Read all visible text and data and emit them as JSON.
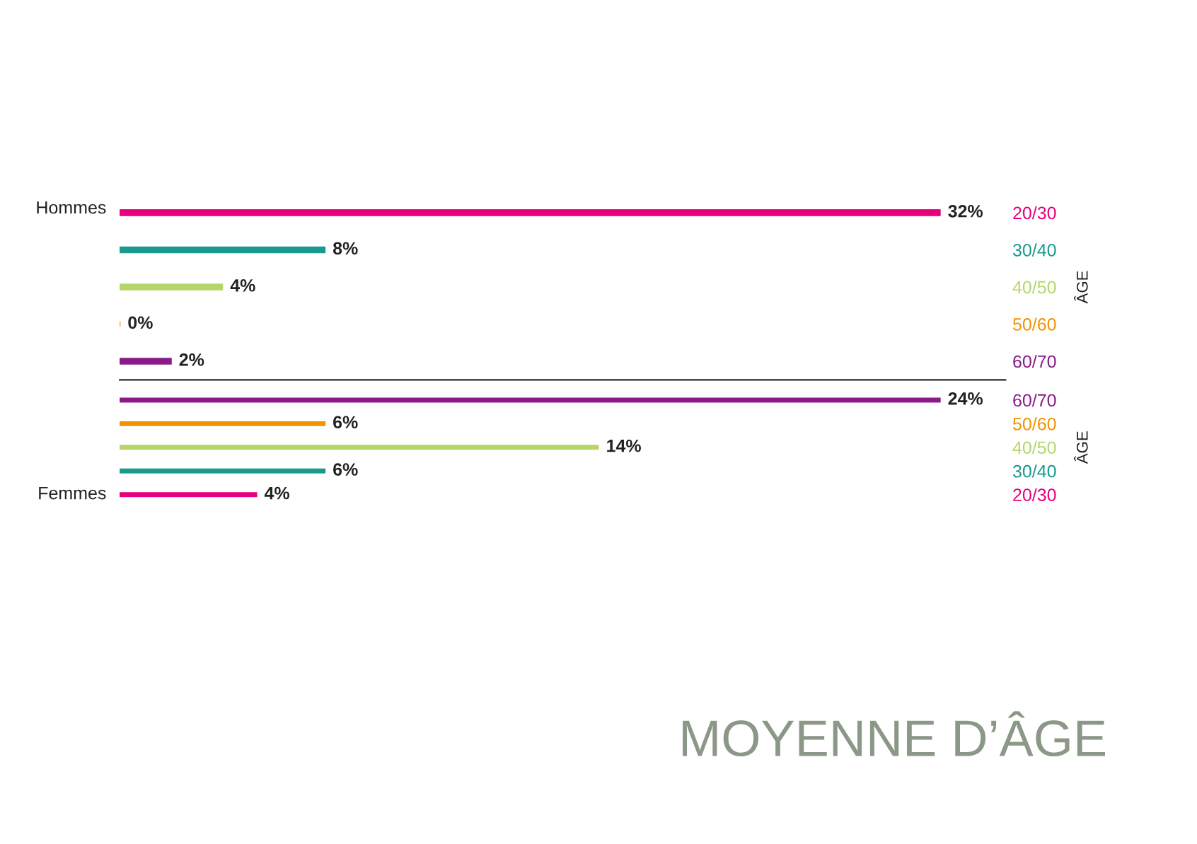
{
  "chart_data": [
    {
      "type": "bar",
      "orientation": "horizontal",
      "title": "Hommes",
      "ylabel": "ÂGE",
      "tick_labels": "y",
      "legend": false,
      "categories": [
        "20/30",
        "30/40",
        "40/50",
        "50/60",
        "60/70"
      ],
      "values": [
        32,
        8,
        4,
        0,
        2
      ],
      "value_labels": [
        "32%",
        "8%",
        "4%",
        "0%",
        "2%"
      ],
      "colors": [
        "#e6007e",
        "#1a9a8e",
        "#b5d56a",
        "#f39200",
        "#8b1a89"
      ]
    },
    {
      "type": "bar",
      "orientation": "horizontal",
      "title": "Femmes",
      "ylabel": "ÂGE",
      "tick_labels": "y",
      "legend": false,
      "categories": [
        "60/70",
        "50/60",
        "40/50",
        "30/40",
        "20/30"
      ],
      "values": [
        24,
        6,
        14,
        6,
        4
      ],
      "value_labels": [
        "24%",
        "6%",
        "14%",
        "6%",
        "4%"
      ],
      "colors": [
        "#8b1a89",
        "#f39200",
        "#b5d56a",
        "#1a9a8e",
        "#e6007e"
      ],
      "annotations": [
        "MOYENNE D’ÂGE"
      ]
    }
  ]
}
